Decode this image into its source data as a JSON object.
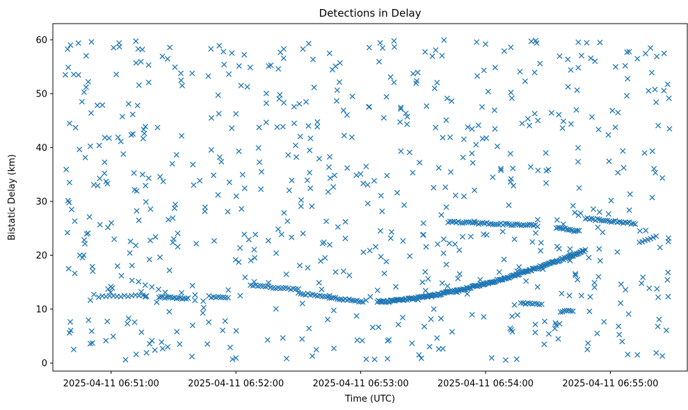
{
  "chart_data": {
    "type": "scatter",
    "title": "Detections in Delay",
    "xlabel": "Time (UTC)",
    "ylabel": "Bistatic Delay (km)",
    "marker": "x",
    "color": "#1f77b4",
    "grid": false,
    "legend": "none",
    "xlim": [
      "2025-04-11 06:50:32",
      "2025-04-11 06:55:37"
    ],
    "ylim": [
      -1.5,
      63
    ],
    "xticks": [
      "2025-04-11 06:51:00",
      "2025-04-11 06:52:00",
      "2025-04-11 06:53:00",
      "2025-04-11 06:54:00",
      "2025-04-11 06:55:00"
    ],
    "yticks": [
      0,
      10,
      20,
      30,
      40,
      50,
      60
    ],
    "tracks": [
      {
        "start": "2025-04-11 06:50:54",
        "end": "2025-04-11 06:51:17",
        "y_start": 12.3,
        "y_end": 12.5,
        "count": 14
      },
      {
        "start": "2025-04-11 06:51:23",
        "end": "2025-04-11 06:51:37",
        "y_start": 12.2,
        "y_end": 12.0,
        "count": 16
      },
      {
        "start": "2025-04-11 06:51:47",
        "end": "2025-04-11 06:51:55",
        "y_start": 12.3,
        "y_end": 12.1,
        "count": 8
      },
      {
        "start": "2025-04-11 06:52:07",
        "end": "2025-04-11 06:52:30",
        "y_start": 14.5,
        "y_end": 13.6,
        "count": 20
      },
      {
        "start": "2025-04-11 06:52:30",
        "end": "2025-04-11 06:52:45",
        "y_start": 12.9,
        "y_end": 12.4,
        "count": 14
      },
      {
        "start": "2025-04-11 06:52:45",
        "end": "2025-04-11 06:53:01",
        "y_start": 12.2,
        "y_end": 11.4,
        "count": 18
      },
      {
        "start": "2025-04-11 06:53:08",
        "end": "2025-04-11 06:54:48",
        "y_start": 11.4,
        "y_end": 20.9,
        "count": 190,
        "curve": 1.6
      },
      {
        "start": "2025-04-11 06:53:42",
        "end": "2025-04-11 06:54:25",
        "y_start": 26.2,
        "y_end": 25.5,
        "count": 45
      },
      {
        "start": "2025-04-11 06:54:34",
        "end": "2025-04-11 06:54:45",
        "y_start": 25.2,
        "y_end": 24.4,
        "count": 14
      },
      {
        "start": "2025-04-11 06:54:48",
        "end": "2025-04-11 06:55:12",
        "y_start": 26.8,
        "y_end": 25.9,
        "count": 26
      },
      {
        "start": "2025-04-11 06:55:14",
        "end": "2025-04-11 06:55:22",
        "y_start": 22.5,
        "y_end": 23.5,
        "count": 7
      },
      {
        "start": "2025-04-11 06:54:17",
        "end": "2025-04-11 06:54:27",
        "y_start": 11.0,
        "y_end": 10.9,
        "count": 10
      },
      {
        "start": "2025-04-11 06:54:36",
        "end": "2025-04-11 06:54:42",
        "y_start": 9.6,
        "y_end": 9.6,
        "count": 7
      },
      {
        "start": "2025-04-11 06:51:10",
        "end": "2025-04-11 06:51:26",
        "y_start": 15.5,
        "y_end": 13.0,
        "count": 6
      },
      {
        "start": "2025-04-11 06:50:57",
        "end": "2025-04-11 06:51:16",
        "y_start": 41.8,
        "y_end": 42.5,
        "count": 4
      }
    ],
    "clutter": {
      "count": 620,
      "start": "2025-04-11 06:50:38",
      "end": "2025-04-11 06:55:29",
      "y_range": [
        0.5,
        60
      ]
    },
    "points": [
      [
        "2025-04-11 06:50:38",
        53.5
      ],
      [
        "2025-04-11 06:50:39",
        24.2
      ],
      [
        "2025-04-11 06:50:40",
        33.5
      ],
      [
        "2025-04-11 06:50:41",
        28.5
      ],
      [
        "2025-04-11 06:50:42",
        2.5
      ],
      [
        "2025-04-11 06:50:40",
        5.6
      ],
      [
        "2025-04-11 06:50:46",
        48.5
      ],
      [
        "2025-04-11 06:50:48",
        51.2
      ],
      [
        "2025-04-11 06:50:49",
        52.2
      ],
      [
        "2025-04-11 06:50:50",
        3.6
      ],
      [
        "2025-04-11 06:50:51",
        3.7
      ],
      [
        "2025-04-11 06:51:04",
        58.7
      ],
      [
        "2025-04-11 06:51:13",
        58.3
      ],
      [
        "2025-04-11 06:51:15",
        58.2
      ],
      [
        "2025-04-11 06:51:12",
        55.7
      ],
      [
        "2025-04-11 06:51:17",
        1.9
      ],
      [
        "2025-04-11 06:51:33",
        3.5
      ],
      [
        "2025-04-11 06:51:48",
        58.3
      ],
      [
        "2025-04-11 06:51:52",
        58.9
      ],
      [
        "2025-04-11 06:51:54",
        57.8
      ],
      [
        "2025-04-11 06:51:58",
        43.6
      ],
      [
        "2025-04-11 06:52:23",
        58.3
      ],
      [
        "2025-04-11 06:52:45",
        57.5
      ],
      [
        "2025-04-11 06:52:28",
        44.5
      ],
      [
        "2025-04-11 06:53:16",
        59.8
      ],
      [
        "2025-04-11 06:53:28",
        1.5
      ],
      [
        "2025-04-11 06:53:43",
        41.9
      ],
      [
        "2025-04-11 06:54:00",
        59.2
      ],
      [
        "2025-04-11 06:54:09",
        57.9
      ],
      [
        "2025-04-11 06:54:15",
        0.7
      ],
      [
        "2025-04-11 06:54:22",
        59.7
      ],
      [
        "2025-04-11 06:54:41",
        54.4
      ],
      [
        "2025-04-11 06:54:55",
        59.5
      ],
      [
        "2025-04-11 06:55:08",
        57.7
      ],
      [
        "2025-04-11 06:55:13",
        56.5
      ],
      [
        "2025-04-11 06:55:22",
        48.4
      ],
      [
        "2025-04-11 06:55:23",
        12.2
      ],
      [
        "2025-04-11 06:55:25",
        1.3
      ],
      [
        "2025-04-11 06:55:13",
        1.5
      ],
      [
        "2025-04-11 06:55:15",
        14.8
      ],
      [
        "2025-04-11 06:54:29",
        39.0
      ],
      [
        "2025-04-11 06:54:37",
        43.6
      ]
    ]
  }
}
